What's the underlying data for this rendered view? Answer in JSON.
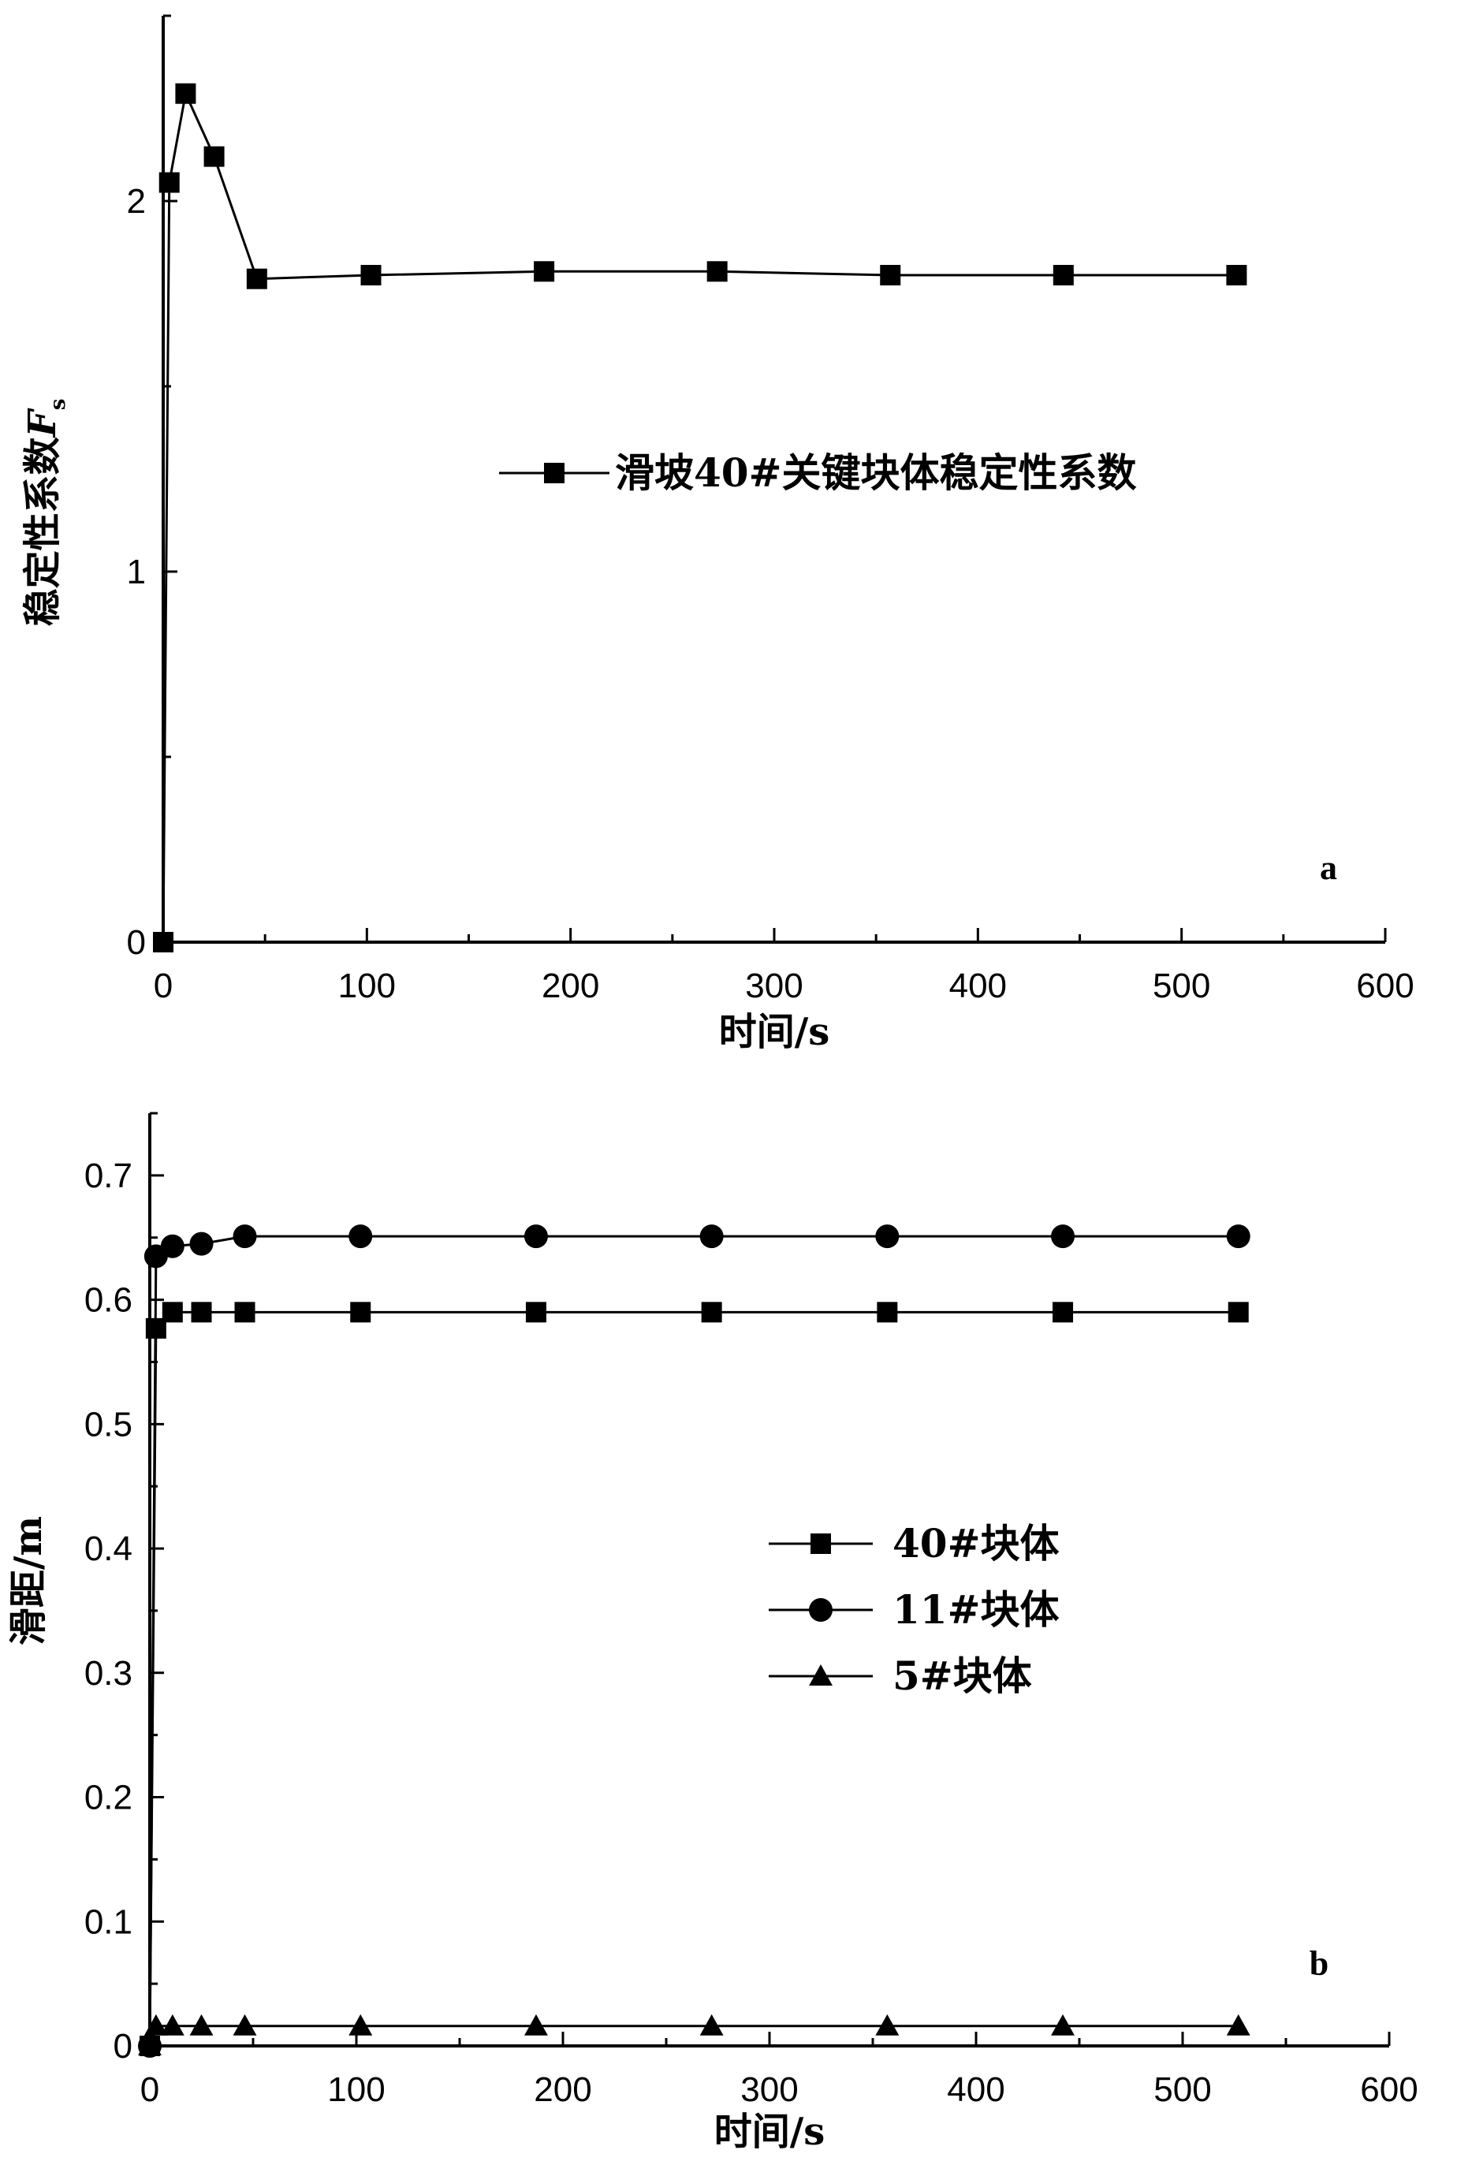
{
  "chart_data": [
    {
      "type": "line",
      "panel_label": "a",
      "xlabel": "时间/s",
      "ylabel": "稳定性系数",
      "ylabel_symbol": "F",
      "ylabel_subscript": "s",
      "xlim": [
        0,
        600
      ],
      "ylim": [
        0,
        2.5
      ],
      "x_ticks": [
        0,
        100,
        200,
        300,
        400,
        500,
        600
      ],
      "y_ticks": [
        0,
        1,
        2
      ],
      "grid": false,
      "legend_position": "center-right",
      "series": [
        {
          "name": "滑坡40#关键块体稳定性系数",
          "marker": "square",
          "x": [
            0,
            3,
            11,
            25,
            46,
            102,
            187,
            272,
            357,
            442,
            527
          ],
          "y": [
            0,
            2.05,
            2.29,
            2.12,
            1.79,
            1.8,
            1.81,
            1.81,
            1.8,
            1.8,
            1.8
          ]
        }
      ]
    },
    {
      "type": "line",
      "panel_label": "b",
      "xlabel": "时间/s",
      "ylabel": "滑距/m",
      "xlim": [
        0,
        600
      ],
      "ylim": [
        0,
        0.75
      ],
      "x_ticks": [
        0,
        100,
        200,
        300,
        400,
        500,
        600
      ],
      "y_ticks": [
        0,
        0.1,
        0.2,
        0.3,
        0.4,
        0.5,
        0.6,
        0.7
      ],
      "grid": false,
      "legend_position": "center-right",
      "series": [
        {
          "name": "40#块体",
          "marker": "square",
          "x": [
            0,
            3,
            11,
            25,
            46,
            102,
            187,
            272,
            357,
            442,
            527
          ],
          "y": [
            0,
            0.577,
            0.59,
            0.59,
            0.59,
            0.59,
            0.59,
            0.59,
            0.59,
            0.59,
            0.59
          ]
        },
        {
          "name": "11#块体",
          "marker": "circle",
          "x": [
            0,
            3,
            11,
            25,
            46,
            102,
            187,
            272,
            357,
            442,
            527
          ],
          "y": [
            0,
            0.635,
            0.643,
            0.645,
            0.651,
            0.651,
            0.651,
            0.651,
            0.651,
            0.651,
            0.651
          ]
        },
        {
          "name": "5#块体",
          "marker": "triangle",
          "x": [
            0,
            3,
            11,
            25,
            46,
            102,
            187,
            272,
            357,
            442,
            527
          ],
          "y": [
            0,
            0.016,
            0.016,
            0.016,
            0.016,
            0.016,
            0.016,
            0.016,
            0.016,
            0.016,
            0.016
          ]
        }
      ]
    }
  ]
}
